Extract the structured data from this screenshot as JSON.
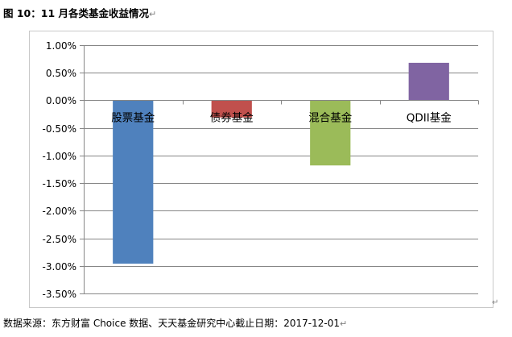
{
  "caption": "图 10：11 月各类基金收益情况",
  "source_text": "数据来源：东方财富 Choice 数据、天天基金研究中心截止日期：2017-12-01",
  "chart_data": {
    "type": "bar",
    "title": "",
    "xlabel": "",
    "ylabel": "",
    "categories": [
      "股票基金",
      "债券基金",
      "混合基金",
      "QDII基金"
    ],
    "values": [
      -2.96,
      -0.31,
      -1.18,
      0.68
    ],
    "colors": [
      "#4f81bd",
      "#c0504d",
      "#9bbb59",
      "#8064a2"
    ],
    "ylim": [
      -3.5,
      1.0
    ],
    "yticks": [
      1.0,
      0.5,
      0.0,
      -0.5,
      -1.0,
      -1.5,
      -2.0,
      -2.5,
      -3.0,
      -3.5
    ],
    "ytick_labels": [
      "1.00%",
      "0.50%",
      "0.00%",
      "-0.50%",
      "-1.00%",
      "-1.50%",
      "-2.00%",
      "-2.50%",
      "-3.00%",
      "-3.50%"
    ],
    "grid": true,
    "legend": "none"
  }
}
